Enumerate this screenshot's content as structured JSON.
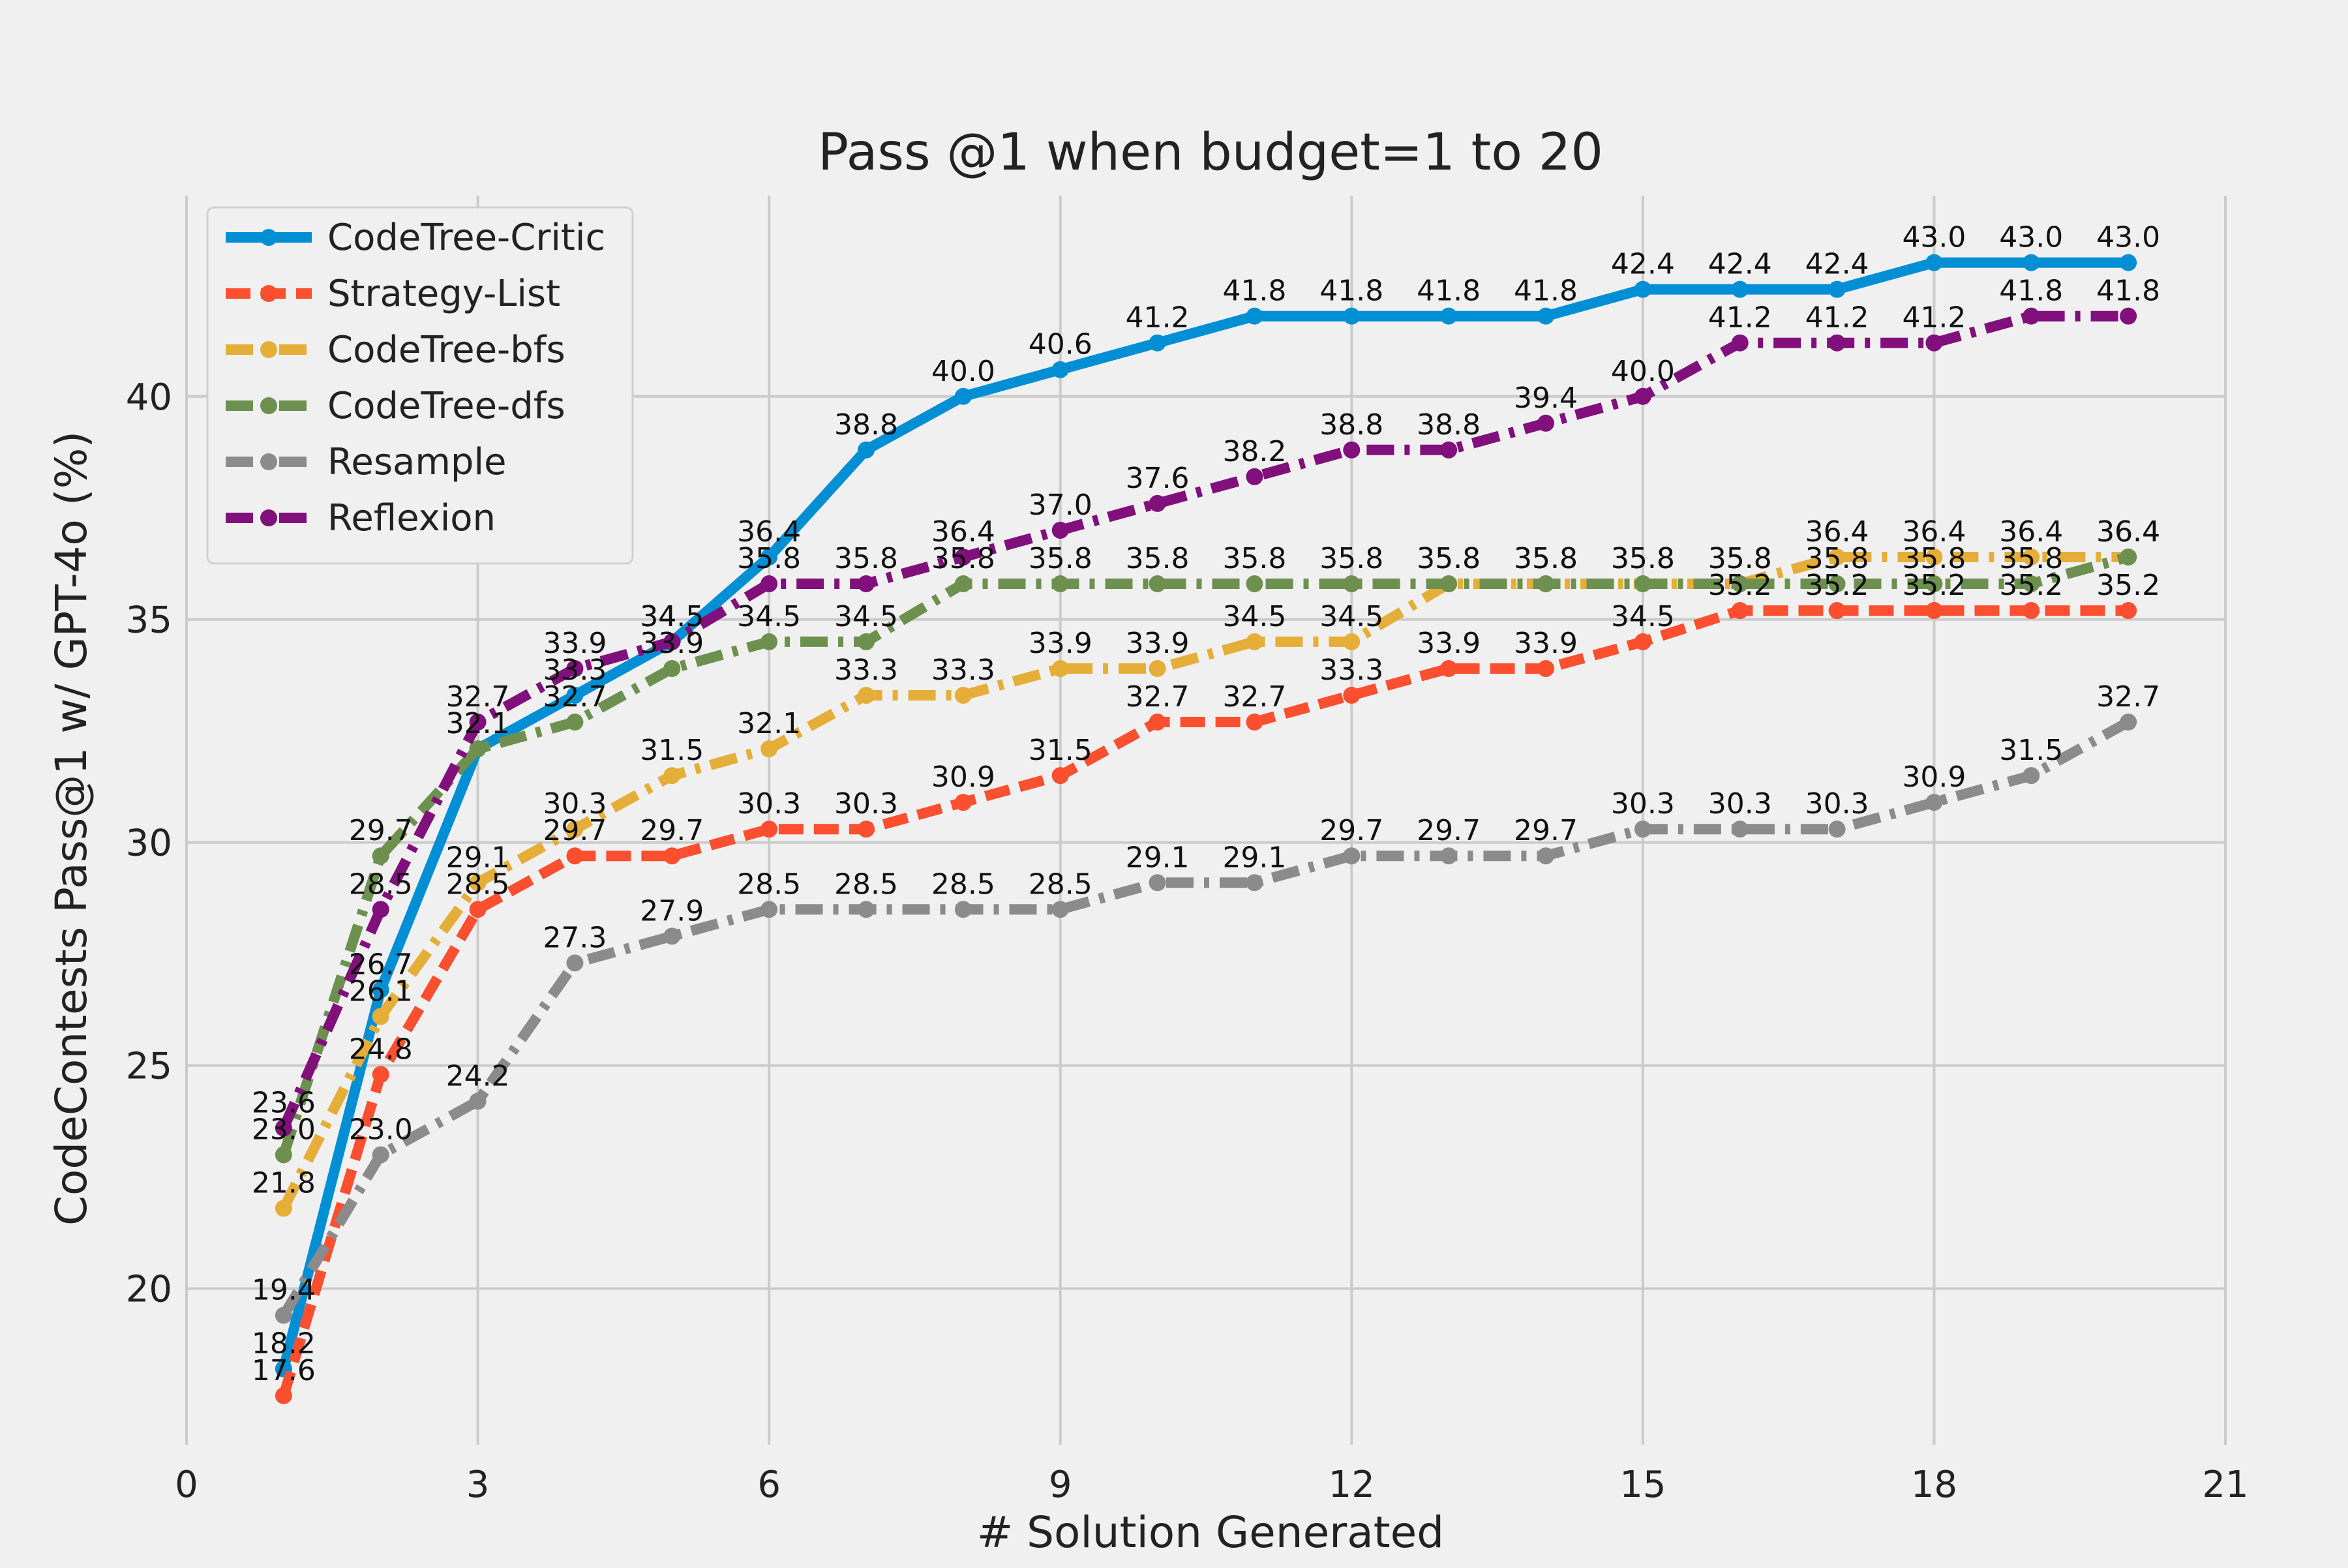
{
  "chart_data": {
    "type": "line",
    "title": "Pass @1 when budget=1 to 20",
    "xlabel": "# Solution Generated",
    "ylabel": "CodeContests Pass@1 w/ GPT-4o (%)",
    "xlim": [
      0,
      21
    ],
    "ylim": [
      16.5,
      44.5
    ],
    "xticks": [
      0,
      3,
      6,
      9,
      12,
      15,
      18,
      21
    ],
    "yticks": [
      20,
      25,
      30,
      35,
      40
    ],
    "grid": true,
    "legend_position": "top-left",
    "x": [
      1,
      2,
      3,
      4,
      5,
      6,
      7,
      8,
      9,
      10,
      11,
      12,
      13,
      14,
      15,
      16,
      17,
      18,
      19,
      20
    ],
    "series": [
      {
        "name": "CodeTree-Critic",
        "color": "#008fd5",
        "style": "solid",
        "values": [
          18.2,
          26.7,
          32.1,
          33.3,
          34.5,
          36.4,
          38.8,
          40.0,
          40.6,
          41.2,
          41.8,
          41.8,
          41.8,
          41.8,
          42.4,
          42.4,
          42.4,
          43.0,
          43.0,
          43.0
        ]
      },
      {
        "name": "Strategy-List",
        "color": "#fc4f30",
        "style": "dashed",
        "values": [
          17.6,
          24.8,
          28.5,
          29.7,
          29.7,
          30.3,
          30.3,
          30.9,
          31.5,
          32.7,
          32.7,
          33.3,
          33.9,
          33.9,
          34.5,
          35.2,
          35.2,
          35.2,
          35.2,
          35.2
        ]
      },
      {
        "name": "CodeTree-bfs",
        "color": "#e5ae38",
        "style": "dashdot",
        "values": [
          21.8,
          26.1,
          29.1,
          30.3,
          31.5,
          32.1,
          33.3,
          33.3,
          33.9,
          33.9,
          34.5,
          34.5,
          35.8,
          35.8,
          35.8,
          35.8,
          36.4,
          36.4,
          36.4,
          36.4
        ]
      },
      {
        "name": "CodeTree-dfs",
        "color": "#6d904f",
        "style": "dashdot",
        "values": [
          23.0,
          29.7,
          32.1,
          32.7,
          33.9,
          34.5,
          34.5,
          35.8,
          35.8,
          35.8,
          35.8,
          35.8,
          35.8,
          35.8,
          35.8,
          35.8,
          35.8,
          35.8,
          35.8,
          36.4
        ]
      },
      {
        "name": "Resample",
        "color": "#8b8b8b",
        "style": "dashdot",
        "values": [
          19.4,
          23.0,
          24.2,
          27.3,
          27.9,
          28.5,
          28.5,
          28.5,
          28.5,
          29.1,
          29.1,
          29.7,
          29.7,
          29.7,
          30.3,
          30.3,
          30.3,
          30.9,
          31.5,
          32.7
        ]
      },
      {
        "name": "Reflexion",
        "color": "#810f7c",
        "style": "dashdot",
        "values": [
          23.6,
          28.5,
          32.7,
          33.9,
          34.5,
          35.8,
          35.8,
          36.4,
          37.0,
          37.6,
          38.2,
          38.8,
          38.8,
          39.4,
          40.0,
          41.2,
          41.2,
          41.2,
          41.8,
          41.8
        ]
      }
    ]
  }
}
